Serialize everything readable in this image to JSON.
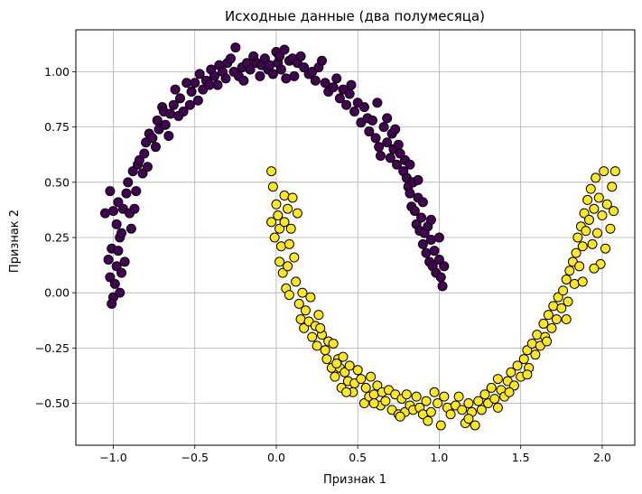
{
  "chart_data": {
    "type": "scatter",
    "title": "Исходные данные (два полумесяца)",
    "xlabel": "Признак 1",
    "ylabel": "Признак 2",
    "xlim": [
      -1.23,
      2.2
    ],
    "ylim": [
      -0.69,
      1.19
    ],
    "xticks": [
      -1.0,
      -0.5,
      0.0,
      0.5,
      1.0,
      1.5,
      2.0
    ],
    "xtick_labels": [
      "−1.0",
      "−0.5",
      "0.0",
      "0.5",
      "1.0",
      "1.5",
      "2.0"
    ],
    "yticks": [
      -0.5,
      -0.25,
      0.0,
      0.25,
      0.5,
      0.75,
      1.0
    ],
    "ytick_labels": [
      "−0.50",
      "−0.25",
      "0.00",
      "0.25",
      "0.50",
      "0.75",
      "1.00"
    ],
    "grid": true,
    "series": [
      {
        "color": "#440154",
        "points": [
          [
            -1.05,
            0.36
          ],
          [
            -1.02,
            0.46
          ],
          [
            -1.0,
            0.37
          ],
          [
            -1.03,
            0.15
          ],
          [
            -1.01,
            0.2
          ],
          [
            -0.98,
            0.12
          ],
          [
            -1.02,
            0.07
          ],
          [
            -0.99,
            0.04
          ],
          [
            -1.0,
            -0.02
          ],
          [
            -1.01,
            -0.05
          ],
          [
            -0.97,
            0.19
          ],
          [
            -0.96,
            0.25
          ],
          [
            -0.95,
            0.27
          ],
          [
            -0.97,
            0.41
          ],
          [
            -0.98,
            0.31
          ],
          [
            -0.95,
            0.09
          ],
          [
            -0.96,
            0.0
          ],
          [
            -0.93,
            0.14
          ],
          [
            -0.94,
            0.38
          ],
          [
            -0.92,
            0.45
          ],
          [
            -0.9,
            0.36
          ],
          [
            -0.89,
            0.29
          ],
          [
            -0.91,
            0.5
          ],
          [
            -0.88,
            0.55
          ],
          [
            -0.87,
            0.38
          ],
          [
            -0.86,
            0.46
          ],
          [
            -0.85,
            0.58
          ],
          [
            -0.84,
            0.6
          ],
          [
            -0.82,
            0.54
          ],
          [
            -0.81,
            0.63
          ],
          [
            -0.8,
            0.68
          ],
          [
            -0.79,
            0.57
          ],
          [
            -0.78,
            0.72
          ],
          [
            -0.76,
            0.7
          ],
          [
            -0.74,
            0.66
          ],
          [
            -0.73,
            0.78
          ],
          [
            -0.72,
            0.74
          ],
          [
            -0.7,
            0.84
          ],
          [
            -0.69,
            0.82
          ],
          [
            -0.68,
            0.76
          ],
          [
            -0.66,
            0.71
          ],
          [
            -0.65,
            0.81
          ],
          [
            -0.63,
            0.85
          ],
          [
            -0.62,
            0.92
          ],
          [
            -0.6,
            0.8
          ],
          [
            -0.59,
            0.88
          ],
          [
            -0.57,
            0.82
          ],
          [
            -0.55,
            0.95
          ],
          [
            -0.53,
            0.85
          ],
          [
            -0.52,
            0.91
          ],
          [
            -0.5,
            0.95
          ],
          [
            -0.48,
            0.87
          ],
          [
            -0.47,
            0.99
          ],
          [
            -0.45,
            0.92
          ],
          [
            -0.43,
            0.96
          ],
          [
            -0.41,
            0.94
          ],
          [
            -0.4,
            1.01
          ],
          [
            -0.38,
            0.98
          ],
          [
            -0.36,
            0.94
          ],
          [
            -0.35,
            1.03
          ],
          [
            -0.33,
            1.0
          ],
          [
            -0.31,
            0.97
          ],
          [
            -0.3,
            1.04
          ],
          [
            -0.28,
            1.06
          ],
          [
            -0.26,
            1.0
          ],
          [
            -0.25,
            1.11
          ],
          [
            -0.23,
            0.98
          ],
          [
            -0.21,
            1.02
          ],
          [
            -0.2,
            0.96
          ],
          [
            -0.18,
            1.04
          ],
          [
            -0.16,
            1.01
          ],
          [
            -0.14,
            1.07
          ],
          [
            -0.12,
            1.04
          ],
          [
            -0.1,
            0.98
          ],
          [
            -0.09,
            1.03
          ],
          [
            -0.07,
            1.06
          ],
          [
            -0.05,
            1.01
          ],
          [
            -0.04,
            1.03
          ],
          [
            -0.02,
            0.99
          ],
          [
            0.0,
            1.09
          ],
          [
            0.01,
            1.04
          ],
          [
            0.02,
            1.07
          ],
          [
            0.03,
            1.01
          ],
          [
            0.05,
            1.1
          ],
          [
            0.06,
            0.97
          ],
          [
            0.08,
            1.05
          ],
          [
            0.1,
            1.06
          ],
          [
            0.11,
            0.98
          ],
          [
            0.13,
            1.04
          ],
          [
            0.15,
            1.07
          ],
          [
            0.17,
            1.02
          ],
          [
            0.2,
            0.99
          ],
          [
            0.22,
            1.0
          ],
          [
            0.24,
            0.96
          ],
          [
            0.26,
            1.02
          ],
          [
            0.28,
            1.05
          ],
          [
            0.3,
            0.95
          ],
          [
            0.32,
            0.91
          ],
          [
            0.35,
            0.93
          ],
          [
            0.37,
            0.97
          ],
          [
            0.39,
            0.88
          ],
          [
            0.41,
            0.92
          ],
          [
            0.43,
            0.85
          ],
          [
            0.45,
            0.9
          ],
          [
            0.46,
            0.94
          ],
          [
            0.48,
            0.82
          ],
          [
            0.5,
            0.86
          ],
          [
            0.52,
            0.77
          ],
          [
            0.54,
            0.84
          ],
          [
            0.56,
            0.79
          ],
          [
            0.57,
            0.73
          ],
          [
            0.59,
            0.78
          ],
          [
            0.61,
            0.7
          ],
          [
            0.63,
            0.66
          ],
          [
            0.64,
            0.62
          ],
          [
            0.66,
            0.75
          ],
          [
            0.68,
            0.68
          ],
          [
            0.7,
            0.61
          ],
          [
            0.71,
            0.72
          ],
          [
            0.72,
            0.65
          ],
          [
            0.74,
            0.58
          ],
          [
            0.75,
            0.67
          ],
          [
            0.76,
            0.63
          ],
          [
            0.78,
            0.55
          ],
          [
            0.79,
            0.6
          ],
          [
            0.8,
            0.52
          ],
          [
            0.81,
            0.48
          ],
          [
            0.82,
            0.45
          ],
          [
            0.83,
            0.39
          ],
          [
            0.84,
            0.5
          ],
          [
            0.85,
            0.37
          ],
          [
            0.86,
            0.31
          ],
          [
            0.87,
            0.43
          ],
          [
            0.88,
            0.28
          ],
          [
            0.89,
            0.34
          ],
          [
            0.9,
            0.22
          ],
          [
            0.91,
            0.27
          ],
          [
            0.92,
            0.18
          ],
          [
            0.93,
            0.3
          ],
          [
            0.94,
            0.14
          ],
          [
            0.95,
            0.24
          ],
          [
            0.96,
            0.12
          ],
          [
            0.97,
            0.19
          ],
          [
            0.98,
            0.09
          ],
          [
            1.0,
            0.15
          ],
          [
            1.01,
            0.07
          ],
          [
            1.02,
            0.03
          ],
          [
            1.03,
            0.12
          ],
          [
            1.0,
            0.25
          ],
          [
            0.95,
            0.33
          ],
          [
            0.9,
            0.41
          ],
          [
            0.87,
            0.51
          ],
          [
            0.82,
            0.58
          ],
          [
            0.73,
            0.74
          ],
          [
            0.68,
            0.79
          ],
          [
            0.62,
            0.86
          ]
        ]
      },
      {
        "color": "#fde725",
        "points": [
          [
            -0.03,
            0.55
          ],
          [
            -0.02,
            0.48
          ],
          [
            -0.03,
            0.32
          ],
          [
            -0.01,
            0.25
          ],
          [
            0.0,
            0.4
          ],
          [
            0.01,
            0.35
          ],
          [
            0.02,
            0.14
          ],
          [
            0.02,
            0.29
          ],
          [
            0.03,
            0.21
          ],
          [
            0.04,
            0.09
          ],
          [
            0.05,
            0.44
          ],
          [
            0.05,
            0.32
          ],
          [
            0.06,
            0.02
          ],
          [
            0.07,
            0.12
          ],
          [
            0.07,
            0.38
          ],
          [
            0.08,
            -0.01
          ],
          [
            0.08,
            0.22
          ],
          [
            0.09,
            0.29
          ],
          [
            0.1,
            0.43
          ],
          [
            0.11,
            0.16
          ],
          [
            0.12,
            0.05
          ],
          [
            0.13,
            0.36
          ],
          [
            0.14,
            -0.05
          ],
          [
            0.15,
            -0.12
          ],
          [
            0.16,
            0.0
          ],
          [
            0.17,
            -0.16
          ],
          [
            0.18,
            -0.08
          ],
          [
            0.2,
            -0.13
          ],
          [
            0.21,
            -0.02
          ],
          [
            0.22,
            -0.2
          ],
          [
            0.24,
            -0.15
          ],
          [
            0.25,
            -0.24
          ],
          [
            0.26,
            -0.1
          ],
          [
            0.28,
            -0.19
          ],
          [
            0.3,
            -0.26
          ],
          [
            0.31,
            -0.3
          ],
          [
            0.32,
            -0.22
          ],
          [
            0.34,
            -0.34
          ],
          [
            0.35,
            -0.23
          ],
          [
            0.36,
            -0.38
          ],
          [
            0.38,
            -0.3
          ],
          [
            0.39,
            -0.34
          ],
          [
            0.4,
            -0.43
          ],
          [
            0.41,
            -0.29
          ],
          [
            0.42,
            -0.36
          ],
          [
            0.44,
            -0.4
          ],
          [
            0.45,
            -0.33
          ],
          [
            0.47,
            -0.45
          ],
          [
            0.48,
            -0.41
          ],
          [
            0.5,
            -0.35
          ],
          [
            0.52,
            -0.39
          ],
          [
            0.54,
            -0.5
          ],
          [
            0.55,
            -0.43
          ],
          [
            0.57,
            -0.47
          ],
          [
            0.58,
            -0.38
          ],
          [
            0.6,
            -0.46
          ],
          [
            0.62,
            -0.42
          ],
          [
            0.64,
            -0.51
          ],
          [
            0.65,
            -0.45
          ],
          [
            0.67,
            -0.49
          ],
          [
            0.69,
            -0.44
          ],
          [
            0.71,
            -0.53
          ],
          [
            0.73,
            -0.46
          ],
          [
            0.75,
            -0.55
          ],
          [
            0.77,
            -0.48
          ],
          [
            0.79,
            -0.54
          ],
          [
            0.8,
            -0.46
          ],
          [
            0.82,
            -0.51
          ],
          [
            0.84,
            -0.53
          ],
          [
            0.86,
            -0.47
          ],
          [
            0.88,
            -0.52
          ],
          [
            0.9,
            -0.55
          ],
          [
            0.92,
            -0.49
          ],
          [
            0.95,
            -0.54
          ],
          [
            0.97,
            -0.45
          ],
          [
            0.99,
            -0.5
          ],
          [
            1.01,
            -0.6
          ],
          [
            1.03,
            -0.47
          ],
          [
            1.05,
            -0.52
          ],
          [
            1.07,
            -0.55
          ],
          [
            1.1,
            -0.51
          ],
          [
            1.12,
            -0.47
          ],
          [
            1.14,
            -0.53
          ],
          [
            1.16,
            -0.59
          ],
          [
            1.18,
            -0.5
          ],
          [
            1.2,
            -0.54
          ],
          [
            1.22,
            -0.6
          ],
          [
            1.24,
            -0.49
          ],
          [
            1.26,
            -0.53
          ],
          [
            1.28,
            -0.46
          ],
          [
            1.3,
            -0.5
          ],
          [
            1.32,
            -0.43
          ],
          [
            1.34,
            -0.48
          ],
          [
            1.36,
            -0.39
          ],
          [
            1.38,
            -0.44
          ],
          [
            1.4,
            -0.47
          ],
          [
            1.42,
            -0.4
          ],
          [
            1.44,
            -0.36
          ],
          [
            1.46,
            -0.42
          ],
          [
            1.48,
            -0.33
          ],
          [
            1.5,
            -0.38
          ],
          [
            1.52,
            -0.3
          ],
          [
            1.54,
            -0.26
          ],
          [
            1.55,
            -0.34
          ],
          [
            1.57,
            -0.23
          ],
          [
            1.59,
            -0.28
          ],
          [
            1.6,
            -0.19
          ],
          [
            1.62,
            -0.24
          ],
          [
            1.64,
            -0.14
          ],
          [
            1.65,
            -0.2
          ],
          [
            1.67,
            -0.1
          ],
          [
            1.69,
            -0.16
          ],
          [
            1.7,
            -0.06
          ],
          [
            1.72,
            -0.12
          ],
          [
            1.73,
            -0.02
          ],
          [
            1.75,
            -0.07
          ],
          [
            1.76,
            0.01
          ],
          [
            1.78,
            0.06
          ],
          [
            1.79,
            -0.04
          ],
          [
            1.8,
            0.1
          ],
          [
            1.82,
            0.14
          ],
          [
            1.83,
            0.04
          ],
          [
            1.84,
            0.18
          ],
          [
            1.85,
            0.25
          ],
          [
            1.86,
            0.12
          ],
          [
            1.87,
            0.3
          ],
          [
            1.88,
            0.21
          ],
          [
            1.89,
            0.36
          ],
          [
            1.9,
            0.28
          ],
          [
            1.91,
            0.42
          ],
          [
            1.92,
            0.33
          ],
          [
            1.93,
            0.47
          ],
          [
            1.94,
            0.22
          ],
          [
            1.95,
            0.38
          ],
          [
            1.96,
            0.52
          ],
          [
            1.97,
            0.27
          ],
          [
            1.98,
            0.43
          ],
          [
            1.99,
            0.13
          ],
          [
            2.0,
            0.35
          ],
          [
            2.01,
            0.55
          ],
          [
            2.02,
            0.2
          ],
          [
            2.03,
            0.4
          ],
          [
            2.05,
            0.29
          ],
          [
            2.06,
            0.48
          ],
          [
            2.08,
            0.55
          ],
          [
            2.07,
            0.37
          ],
          [
            1.95,
            0.11
          ],
          [
            1.88,
            0.05
          ],
          [
            1.78,
            -0.12
          ],
          [
            1.66,
            -0.22
          ],
          [
            1.54,
            -0.37
          ],
          [
            1.43,
            -0.45
          ],
          [
            1.36,
            -0.52
          ],
          [
            1.18,
            -0.57
          ],
          [
            0.93,
            -0.58
          ],
          [
            0.76,
            -0.56
          ],
          [
            0.6,
            -0.5
          ],
          [
            0.43,
            -0.45
          ],
          [
            0.37,
            -0.32
          ],
          [
            0.27,
            -0.16
          ]
        ]
      }
    ]
  }
}
